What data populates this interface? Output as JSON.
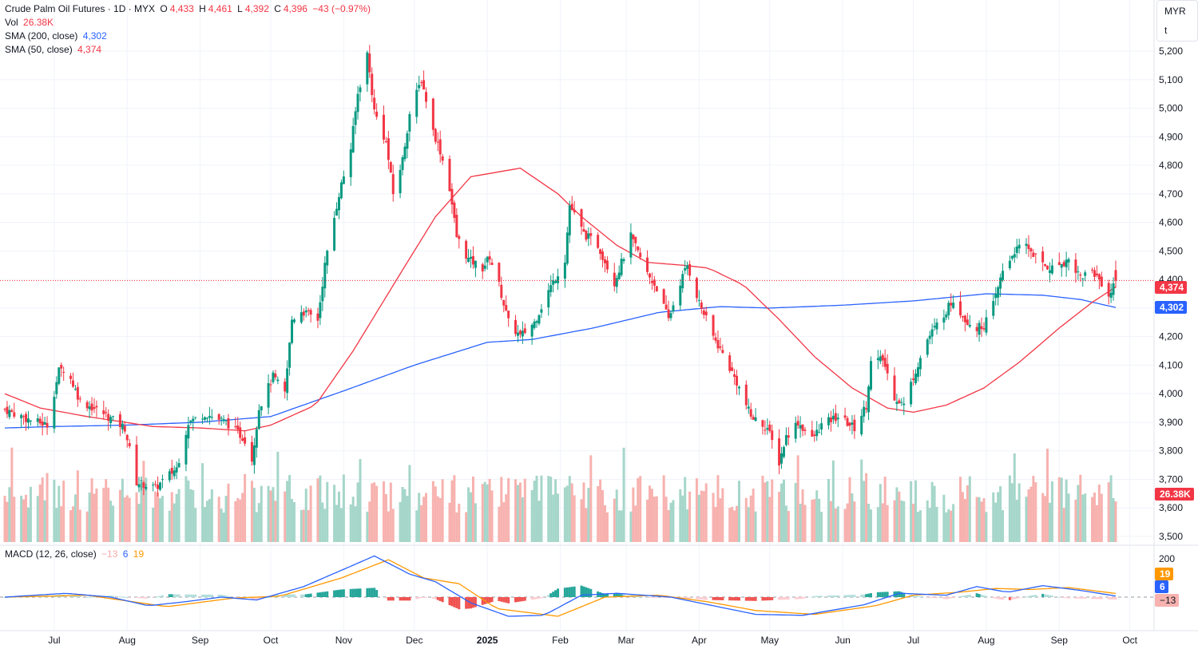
{
  "header": {
    "symbol": "Crude Palm Oil Futures · 1D · MYX",
    "open_label": "O",
    "open": "4,433",
    "high_label": "H",
    "high": "4,461",
    "low_label": "L",
    "low": "4,392",
    "close_label": "C",
    "close": "4,396",
    "change": "−43 (−0.97%)"
  },
  "legend": {
    "vol_label": "Vol",
    "vol_value": "26.38K",
    "sma200_label": "SMA (200, close)",
    "sma200_value": "4,302",
    "sma50_label": "SMA (50, close)",
    "sma50_value": "4,374",
    "macd_label": "MACD (12, 26, close)",
    "macd_hist": "−13",
    "macd_line": "6",
    "macd_signal": "19"
  },
  "unit": {
    "currency": "MYR",
    "unit": "t"
  },
  "price_tags": {
    "sma50": "4,374",
    "sma200": "4,302",
    "volume": "26.38K"
  },
  "macd_tags": {
    "signal": "19",
    "macd": "6",
    "hist": "−13"
  },
  "colors": {
    "up": "#089981",
    "down": "#f23645",
    "sma200": "#2962ff",
    "sma50": "#f23645",
    "macd": "#2962ff",
    "signal": "#ff9800",
    "vol_up": "#a5d6c9",
    "vol_down": "#f7b2af"
  },
  "chart_data": {
    "type": "candlestick",
    "y_ticks": [
      "5,200",
      "5,100",
      "5,000",
      "4,900",
      "4,800",
      "4,700",
      "4,600",
      "4,500",
      "4,400",
      "4,300",
      "4,200",
      "4,100",
      "4,000",
      "3,900",
      "3,800",
      "3,700",
      "3,600",
      "3,500"
    ],
    "y_tick_values": [
      5200,
      5100,
      5000,
      4900,
      4800,
      4700,
      4600,
      4500,
      4400,
      4300,
      4200,
      4100,
      4000,
      3900,
      3800,
      3700,
      3600,
      3500
    ],
    "macd_ticks": [
      "200"
    ],
    "macd_tick_values": [
      200
    ],
    "x_labels": [
      "Jul",
      "Aug",
      "Sep",
      "Oct",
      "Nov",
      "Dec",
      "2025",
      "Feb",
      "Mar",
      "Apr",
      "May",
      "Jun",
      "Jul",
      "Aug",
      "Sep",
      "Oct"
    ],
    "x_label_dates": [
      "2024-07-01",
      "2024-08-01",
      "2024-09-01",
      "2024-10-01",
      "2024-11-01",
      "2024-12-01",
      "2025-01-01",
      "2025-02-01",
      "2025-03-01",
      "2025-04-01",
      "2025-05-01",
      "2025-06-01",
      "2025-07-01",
      "2025-08-01",
      "2025-09-01",
      "2025-10-01"
    ],
    "start_date": "2024-06-10",
    "end_date": "2025-09-25",
    "close_anchors": [
      [
        "2024-06-10",
        3945
      ],
      [
        "2024-06-20",
        3910
      ],
      [
        "2024-06-28",
        3890
      ],
      [
        "2024-07-03",
        4080
      ],
      [
        "2024-07-06",
        4090
      ],
      [
        "2024-07-12",
        3975
      ],
      [
        "2024-07-22",
        3930
      ],
      [
        "2024-07-31",
        3880
      ],
      [
        "2024-08-05",
        3690
      ],
      [
        "2024-08-13",
        3670
      ],
      [
        "2024-08-22",
        3740
      ],
      [
        "2024-08-27",
        3900
      ],
      [
        "2024-09-03",
        3930
      ],
      [
        "2024-09-12",
        3900
      ],
      [
        "2024-09-20",
        3840
      ],
      [
        "2024-09-23",
        3770
      ],
      [
        "2024-09-26",
        3950
      ],
      [
        "2024-10-02",
        4060
      ],
      [
        "2024-10-07",
        4000
      ],
      [
        "2024-10-10",
        4260
      ],
      [
        "2024-10-14",
        4290
      ],
      [
        "2024-10-21",
        4260
      ],
      [
        "2024-10-24",
        4450
      ],
      [
        "2024-10-30",
        4700
      ],
      [
        "2024-11-04",
        4860
      ],
      [
        "2024-11-07",
        5050
      ],
      [
        "2024-11-11",
        5190
      ],
      [
        "2024-11-14",
        4990
      ],
      [
        "2024-11-19",
        4880
      ],
      [
        "2024-11-22",
        4700
      ],
      [
        "2024-11-26",
        4820
      ],
      [
        "2024-11-29",
        4980
      ],
      [
        "2024-12-04",
        5100
      ],
      [
        "2024-12-06",
        5030
      ],
      [
        "2024-12-09",
        4920
      ],
      [
        "2024-12-12",
        4850
      ],
      [
        "2024-12-16",
        4720
      ],
      [
        "2024-12-19",
        4550
      ],
      [
        "2024-12-24",
        4470
      ],
      [
        "2024-12-30",
        4440
      ],
      [
        "2025-01-02",
        4480
      ],
      [
        "2025-01-06",
        4380
      ],
      [
        "2025-01-10",
        4250
      ],
      [
        "2025-01-15",
        4200
      ],
      [
        "2025-01-21",
        4250
      ],
      [
        "2025-01-27",
        4360
      ],
      [
        "2025-02-03",
        4470
      ],
      [
        "2025-02-05",
        4660
      ],
      [
        "2025-02-11",
        4560
      ],
      [
        "2025-02-17",
        4520
      ],
      [
        "2025-02-24",
        4390
      ],
      [
        "2025-03-03",
        4550
      ],
      [
        "2025-03-10",
        4420
      ],
      [
        "2025-03-14",
        4370
      ],
      [
        "2025-03-19",
        4260
      ],
      [
        "2025-03-24",
        4390
      ],
      [
        "2025-03-27",
        4450
      ],
      [
        "2025-04-01",
        4320
      ],
      [
        "2025-04-07",
        4200
      ],
      [
        "2025-04-11",
        4140
      ],
      [
        "2025-04-17",
        4040
      ],
      [
        "2025-04-23",
        3920
      ],
      [
        "2025-04-30",
        3880
      ],
      [
        "2025-05-05",
        3760
      ],
      [
        "2025-05-08",
        3850
      ],
      [
        "2025-05-13",
        3900
      ],
      [
        "2025-05-19",
        3840
      ],
      [
        "2025-05-23",
        3890
      ],
      [
        "2025-05-30",
        3920
      ],
      [
        "2025-06-06",
        3880
      ],
      [
        "2025-06-11",
        3960
      ],
      [
        "2025-06-13",
        4110
      ],
      [
        "2025-06-18",
        4120
      ],
      [
        "2025-06-23",
        3990
      ],
      [
        "2025-06-27",
        3960
      ],
      [
        "2025-07-01",
        4060
      ],
      [
        "2025-07-07",
        4190
      ],
      [
        "2025-07-14",
        4280
      ],
      [
        "2025-07-18",
        4330
      ],
      [
        "2025-07-23",
        4260
      ],
      [
        "2025-07-28",
        4230
      ],
      [
        "2025-07-31",
        4240
      ],
      [
        "2025-08-04",
        4310
      ],
      [
        "2025-08-08",
        4430
      ],
      [
        "2025-08-13",
        4500
      ],
      [
        "2025-08-18",
        4520
      ],
      [
        "2025-08-25",
        4450
      ],
      [
        "2025-08-29",
        4440
      ],
      [
        "2025-09-05",
        4470
      ],
      [
        "2025-09-10",
        4410
      ],
      [
        "2025-09-15",
        4430
      ],
      [
        "2025-09-19",
        4390
      ],
      [
        "2025-09-22",
        4340
      ],
      [
        "2025-09-25",
        4396
      ]
    ],
    "sma50_anchors": [
      [
        "2024-06-10",
        4000
      ],
      [
        "2024-06-25",
        3950
      ],
      [
        "2024-07-15",
        3920
      ],
      [
        "2024-08-12",
        3885
      ],
      [
        "2024-09-01",
        3880
      ],
      [
        "2024-09-20",
        3870
      ],
      [
        "2024-10-01",
        3890
      ],
      [
        "2024-10-20",
        3960
      ],
      [
        "2024-11-05",
        4150
      ],
      [
        "2024-11-25",
        4420
      ],
      [
        "2024-12-10",
        4620
      ],
      [
        "2024-12-25",
        4760
      ],
      [
        "2025-01-15",
        4790
      ],
      [
        "2025-01-31",
        4700
      ],
      [
        "2025-02-10",
        4620
      ],
      [
        "2025-02-25",
        4520
      ],
      [
        "2025-03-10",
        4460
      ],
      [
        "2025-03-25",
        4450
      ],
      [
        "2025-04-05",
        4440
      ],
      [
        "2025-04-20",
        4380
      ],
      [
        "2025-05-05",
        4260
      ],
      [
        "2025-05-20",
        4130
      ],
      [
        "2025-06-05",
        4020
      ],
      [
        "2025-06-20",
        3950
      ],
      [
        "2025-07-01",
        3935
      ],
      [
        "2025-07-15",
        3960
      ],
      [
        "2025-07-31",
        4020
      ],
      [
        "2025-08-15",
        4110
      ],
      [
        "2025-09-01",
        4230
      ],
      [
        "2025-09-15",
        4320
      ],
      [
        "2025-09-25",
        4374
      ]
    ],
    "sma200_anchors": [
      [
        "2024-06-10",
        3880
      ],
      [
        "2024-07-01",
        3885
      ],
      [
        "2024-08-01",
        3890
      ],
      [
        "2024-09-01",
        3900
      ],
      [
        "2024-10-01",
        3920
      ],
      [
        "2024-11-01",
        4010
      ],
      [
        "2024-12-01",
        4100
      ],
      [
        "2025-01-01",
        4180
      ],
      [
        "2025-01-20",
        4190
      ],
      [
        "2025-02-15",
        4230
      ],
      [
        "2025-03-15",
        4285
      ],
      [
        "2025-04-10",
        4305
      ],
      [
        "2025-05-01",
        4300
      ],
      [
        "2025-06-01",
        4310
      ],
      [
        "2025-07-01",
        4325
      ],
      [
        "2025-08-01",
        4350
      ],
      [
        "2025-08-25",
        4345
      ],
      [
        "2025-09-10",
        4330
      ],
      [
        "2025-09-25",
        4302
      ]
    ],
    "macd_anchors": [
      [
        "2024-06-10",
        0
      ],
      [
        "2024-07-06",
        20
      ],
      [
        "2024-07-25",
        0
      ],
      [
        "2024-08-10",
        -45
      ],
      [
        "2024-08-25",
        -25
      ],
      [
        "2024-09-10",
        0
      ],
      [
        "2024-09-25",
        -15
      ],
      [
        "2024-10-15",
        55
      ],
      [
        "2024-10-31",
        140
      ],
      [
        "2024-11-14",
        215
      ],
      [
        "2024-11-29",
        120
      ],
      [
        "2024-12-10",
        80
      ],
      [
        "2024-12-25",
        -30
      ],
      [
        "2025-01-10",
        -100
      ],
      [
        "2025-01-25",
        -95
      ],
      [
        "2025-02-10",
        10
      ],
      [
        "2025-02-25",
        20
      ],
      [
        "2025-03-20",
        0
      ],
      [
        "2025-04-05",
        -40
      ],
      [
        "2025-04-25",
        -90
      ],
      [
        "2025-05-15",
        -95
      ],
      [
        "2025-06-10",
        -40
      ],
      [
        "2025-06-25",
        20
      ],
      [
        "2025-07-15",
        10
      ],
      [
        "2025-07-28",
        55
      ],
      [
        "2025-08-10",
        25
      ],
      [
        "2025-08-25",
        60
      ],
      [
        "2025-09-10",
        35
      ],
      [
        "2025-09-25",
        6
      ]
    ],
    "signal_anchors": [
      [
        "2024-06-10",
        0
      ],
      [
        "2024-07-15",
        10
      ],
      [
        "2024-08-18",
        -50
      ],
      [
        "2024-09-15",
        -5
      ],
      [
        "2024-10-05",
        5
      ],
      [
        "2024-10-31",
        100
      ],
      [
        "2024-11-20",
        195
      ],
      [
        "2024-12-05",
        100
      ],
      [
        "2024-12-20",
        70
      ],
      [
        "2025-01-05",
        -60
      ],
      [
        "2025-01-31",
        -100
      ],
      [
        "2025-02-20",
        0
      ],
      [
        "2025-03-15",
        10
      ],
      [
        "2025-04-05",
        -25
      ],
      [
        "2025-04-25",
        -70
      ],
      [
        "2025-05-20",
        -90
      ],
      [
        "2025-06-15",
        -45
      ],
      [
        "2025-07-01",
        10
      ],
      [
        "2025-07-20",
        25
      ],
      [
        "2025-08-05",
        45
      ],
      [
        "2025-08-20",
        40
      ],
      [
        "2025-09-05",
        50
      ],
      [
        "2025-09-25",
        19
      ]
    ],
    "vol_range": [
      0,
      600
    ]
  }
}
